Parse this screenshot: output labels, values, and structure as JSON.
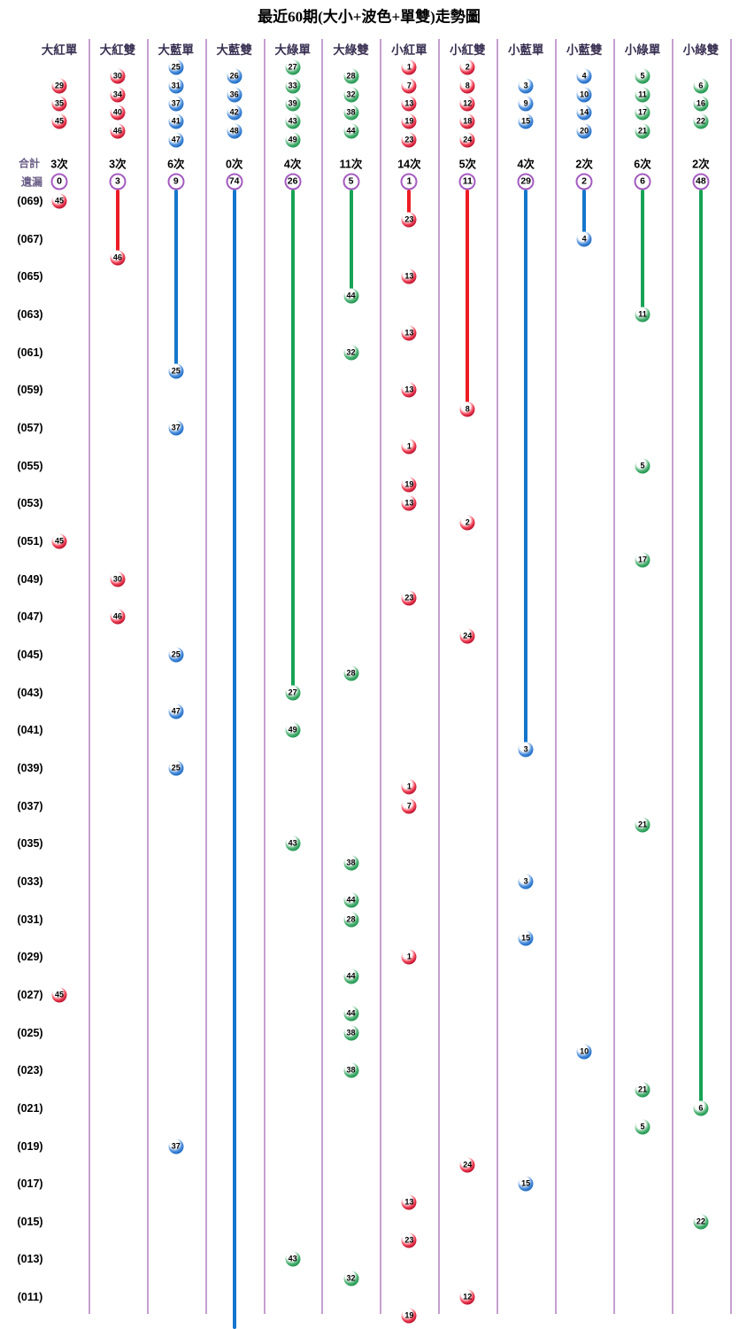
{
  "labels": {
    "totals": "合計",
    "missing": "遺漏"
  },
  "chart_data": {
    "type": "scatter",
    "title": "最近60期(大小+波色+單雙)走勢圖",
    "legend_position": "none",
    "grid": "vertical-separators",
    "x_axis_note": "12 categories (big/small + color + odd/even)",
    "y_axis_note": "period labels (069) down to (011), 60 periods total",
    "colors": {
      "red_line": "#ed1c24",
      "blue_line": "#1476cc",
      "green_line": "#16a355",
      "separator": "#8b3fa0",
      "miss_ring": "#a55bc0"
    },
    "columns": [
      {
        "label": "大紅單",
        "color": "red",
        "member_balls": [
          29,
          35,
          45
        ],
        "total": "3次",
        "missing": "0",
        "line_end_period": null,
        "line_to_bottom": false
      },
      {
        "label": "大紅雙",
        "color": "red",
        "member_balls": [
          30,
          34,
          40,
          46
        ],
        "total": "3次",
        "missing": "3",
        "line_end_period": 66,
        "line_to_bottom": false
      },
      {
        "label": "大藍單",
        "color": "blue",
        "member_balls": [
          25,
          31,
          37,
          41,
          47
        ],
        "total": "6次",
        "missing": "9",
        "line_end_period": 60,
        "line_to_bottom": false
      },
      {
        "label": "大藍雙",
        "color": "blue",
        "member_balls": [
          26,
          36,
          42,
          48
        ],
        "total": "0次",
        "missing": "74",
        "line_end_period": null,
        "line_to_bottom": true
      },
      {
        "label": "大綠單",
        "color": "green",
        "member_balls": [
          27,
          33,
          39,
          43,
          49
        ],
        "total": "4次",
        "missing": "26",
        "line_end_period": 43,
        "line_to_bottom": false
      },
      {
        "label": "大綠雙",
        "color": "green",
        "member_balls": [
          28,
          32,
          38,
          44
        ],
        "total": "11次",
        "missing": "5",
        "line_end_period": 64,
        "line_to_bottom": false
      },
      {
        "label": "小紅單",
        "color": "red",
        "member_balls": [
          1,
          7,
          13,
          19,
          23
        ],
        "total": "14次",
        "missing": "1",
        "line_end_period": 68,
        "line_to_bottom": false
      },
      {
        "label": "小紅雙",
        "color": "red",
        "member_balls": [
          2,
          8,
          12,
          18,
          24
        ],
        "total": "5次",
        "missing": "11",
        "line_end_period": 58,
        "line_to_bottom": false
      },
      {
        "label": "小藍單",
        "color": "blue",
        "member_balls": [
          3,
          9,
          15
        ],
        "total": "4次",
        "missing": "29",
        "line_end_period": 40,
        "line_to_bottom": false
      },
      {
        "label": "小藍雙",
        "color": "blue",
        "member_balls": [
          4,
          10,
          14,
          20
        ],
        "total": "2次",
        "missing": "2",
        "line_end_period": 67,
        "line_to_bottom": false
      },
      {
        "label": "小綠單",
        "color": "green",
        "member_balls": [
          5,
          11,
          17,
          21
        ],
        "total": "6次",
        "missing": "6",
        "line_end_period": 63,
        "line_to_bottom": false
      },
      {
        "label": "小綠雙",
        "color": "green",
        "member_balls": [
          6,
          16,
          22
        ],
        "total": "2次",
        "missing": "48",
        "line_end_period": 21,
        "line_to_bottom": false
      }
    ],
    "row_labels": [
      "(069)",
      "(067)",
      "(065)",
      "(063)",
      "(061)",
      "(059)",
      "(057)",
      "(055)",
      "(053)",
      "(051)",
      "(049)",
      "(047)",
      "(045)",
      "(043)",
      "(041)",
      "(039)",
      "(037)",
      "(035)",
      "(033)",
      "(031)",
      "(029)",
      "(027)",
      "(025)",
      "(023)",
      "(021)",
      "(019)",
      "(017)",
      "(015)",
      "(013)",
      "(011)"
    ],
    "draws": [
      {
        "period": 69,
        "col": 0,
        "num": 45
      },
      {
        "period": 68,
        "col": 6,
        "num": 23
      },
      {
        "period": 67,
        "col": 9,
        "num": 4
      },
      {
        "period": 66,
        "col": 1,
        "num": 46
      },
      {
        "period": 65,
        "col": 6,
        "num": 13
      },
      {
        "period": 64,
        "col": 5,
        "num": 44
      },
      {
        "period": 63,
        "col": 10,
        "num": 11
      },
      {
        "period": 62,
        "col": 6,
        "num": 13
      },
      {
        "period": 61,
        "col": 5,
        "num": 32
      },
      {
        "period": 60,
        "col": 2,
        "num": 25
      },
      {
        "period": 59,
        "col": 6,
        "num": 13
      },
      {
        "period": 58,
        "col": 7,
        "num": 8
      },
      {
        "period": 57,
        "col": 2,
        "num": 37
      },
      {
        "period": 56,
        "col": 6,
        "num": 1
      },
      {
        "period": 55,
        "col": 10,
        "num": 5
      },
      {
        "period": 54,
        "col": 6,
        "num": 19
      },
      {
        "period": 53,
        "col": 6,
        "num": 13
      },
      {
        "period": 52,
        "col": 7,
        "num": 2
      },
      {
        "period": 51,
        "col": 0,
        "num": 45
      },
      {
        "period": 50,
        "col": 10,
        "num": 17
      },
      {
        "period": 49,
        "col": 1,
        "num": 30
      },
      {
        "period": 48,
        "col": 6,
        "num": 23
      },
      {
        "period": 47,
        "col": 1,
        "num": 46
      },
      {
        "period": 46,
        "col": 7,
        "num": 24
      },
      {
        "period": 45,
        "col": 2,
        "num": 25
      },
      {
        "period": 44,
        "col": 5,
        "num": 28
      },
      {
        "period": 43,
        "col": 4,
        "num": 27
      },
      {
        "period": 42,
        "col": 2,
        "num": 47
      },
      {
        "period": 41,
        "col": 4,
        "num": 49
      },
      {
        "period": 40,
        "col": 8,
        "num": 3
      },
      {
        "period": 39,
        "col": 2,
        "num": 25
      },
      {
        "period": 38,
        "col": 6,
        "num": 1
      },
      {
        "period": 37,
        "col": 6,
        "num": 7
      },
      {
        "period": 36,
        "col": 10,
        "num": 21
      },
      {
        "period": 35,
        "col": 4,
        "num": 43
      },
      {
        "period": 34,
        "col": 5,
        "num": 38
      },
      {
        "period": 33,
        "col": 8,
        "num": 3
      },
      {
        "period": 32,
        "col": 5,
        "num": 44
      },
      {
        "period": 31,
        "col": 5,
        "num": 28
      },
      {
        "period": 30,
        "col": 8,
        "num": 15
      },
      {
        "period": 29,
        "col": 6,
        "num": 1
      },
      {
        "period": 28,
        "col": 5,
        "num": 44
      },
      {
        "period": 27,
        "col": 0,
        "num": 45
      },
      {
        "period": 26,
        "col": 5,
        "num": 44
      },
      {
        "period": 25,
        "col": 5,
        "num": 38
      },
      {
        "period": 24,
        "col": 9,
        "num": 10
      },
      {
        "period": 23,
        "col": 5,
        "num": 38
      },
      {
        "period": 22,
        "col": 10,
        "num": 21
      },
      {
        "period": 21,
        "col": 11,
        "num": 6
      },
      {
        "period": 20,
        "col": 10,
        "num": 5
      },
      {
        "period": 19,
        "col": 2,
        "num": 37
      },
      {
        "period": 18,
        "col": 7,
        "num": 24
      },
      {
        "period": 17,
        "col": 8,
        "num": 15
      },
      {
        "period": 16,
        "col": 6,
        "num": 13
      },
      {
        "period": 15,
        "col": 11,
        "num": 22
      },
      {
        "period": 14,
        "col": 6,
        "num": 23
      },
      {
        "period": 13,
        "col": 4,
        "num": 43
      },
      {
        "period": 12,
        "col": 5,
        "num": 32
      },
      {
        "period": 11,
        "col": 7,
        "num": 12
      },
      {
        "period": 10,
        "col": 6,
        "num": 19
      }
    ]
  }
}
